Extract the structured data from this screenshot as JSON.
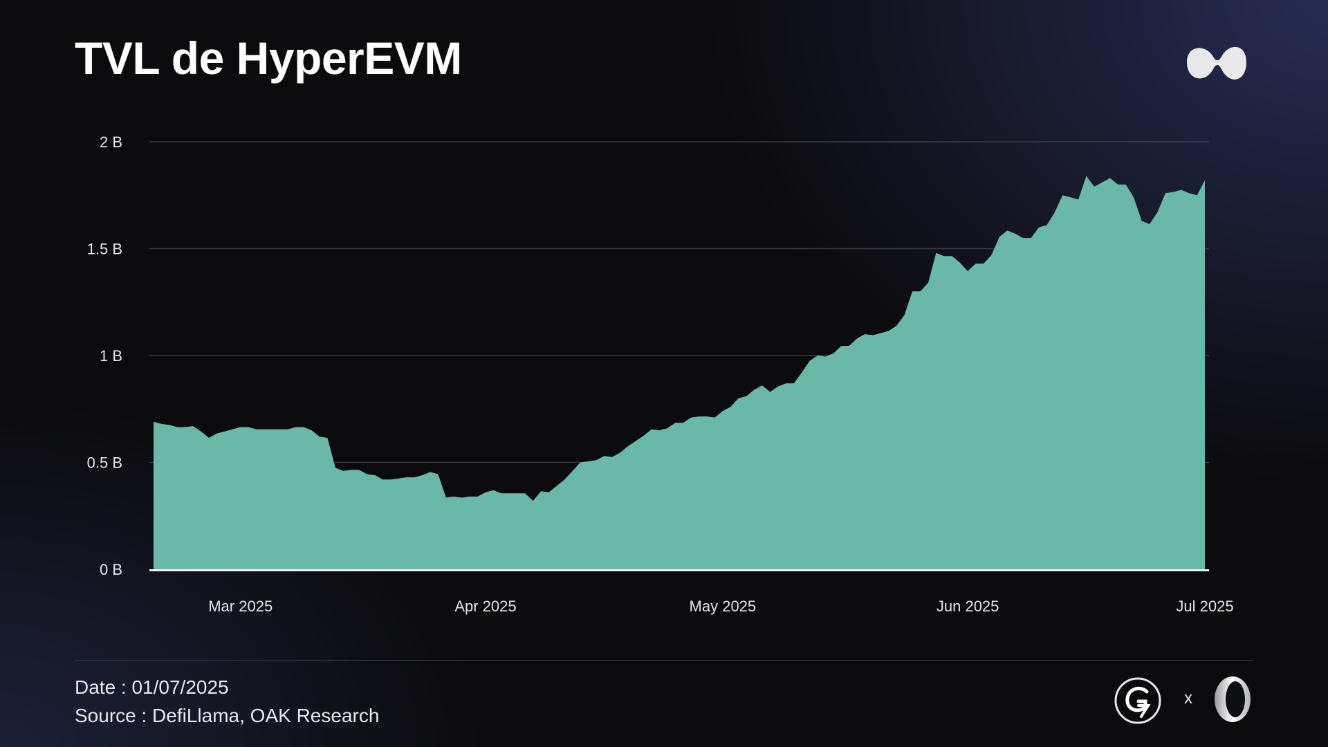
{
  "header": {
    "title": "TVL de HyperEVM",
    "logo_icon": "hyperliquid-logo-icon"
  },
  "footer": {
    "date": "Date : 01/07/2025",
    "source": "Source : DefiLlama, OAK Research",
    "partner_separator": "x",
    "partner_icons": [
      "g7-logo-icon",
      "oak-ring-logo-icon"
    ]
  },
  "colors": {
    "area_fill": "#69b8a8",
    "grid": "#3b3d46",
    "baseline": "#f2f2f2",
    "background": "#0b0b0d"
  },
  "chart_data": {
    "type": "area",
    "title": "TVL de HyperEVM",
    "xlabel": "",
    "ylabel": "",
    "y_unit": "B",
    "ylim": [
      0,
      2
    ],
    "y_ticks": [
      {
        "value": 0,
        "label": "0 B"
      },
      {
        "value": 0.5,
        "label": "0.5 B"
      },
      {
        "value": 1,
        "label": "1 B"
      },
      {
        "value": 1.5,
        "label": "1.5 B"
      },
      {
        "value": 2,
        "label": "2 B"
      }
    ],
    "xlim": [
      "2025-02-18",
      "2025-07-01"
    ],
    "x_ticks": [
      {
        "date": "2025-03-01",
        "label": "Mar 2025"
      },
      {
        "date": "2025-04-01",
        "label": "Apr 2025"
      },
      {
        "date": "2025-05-01",
        "label": "May 2025"
      },
      {
        "date": "2025-06-01",
        "label": "Jun 2025"
      },
      {
        "date": "2025-07-01",
        "label": "Jul 2025"
      }
    ],
    "grid": true,
    "legend": "none",
    "series": [
      {
        "points": [
          [
            "2025-02-18",
            0.69
          ],
          [
            "2025-02-19",
            0.68
          ],
          [
            "2025-02-20",
            0.675
          ],
          [
            "2025-02-21",
            0.665
          ],
          [
            "2025-02-22",
            0.665
          ],
          [
            "2025-02-23",
            0.67
          ],
          [
            "2025-02-24",
            0.645
          ],
          [
            "2025-02-25",
            0.615
          ],
          [
            "2025-02-26",
            0.635
          ],
          [
            "2025-02-27",
            0.645
          ],
          [
            "2025-02-28",
            0.655
          ],
          [
            "2025-03-01",
            0.665
          ],
          [
            "2025-03-02",
            0.665
          ],
          [
            "2025-03-03",
            0.655
          ],
          [
            "2025-03-04",
            0.655
          ],
          [
            "2025-03-05",
            0.655
          ],
          [
            "2025-03-06",
            0.655
          ],
          [
            "2025-03-07",
            0.655
          ],
          [
            "2025-03-08",
            0.665
          ],
          [
            "2025-03-09",
            0.665
          ],
          [
            "2025-03-10",
            0.65
          ],
          [
            "2025-03-11",
            0.62
          ],
          [
            "2025-03-12",
            0.615
          ],
          [
            "2025-03-13",
            0.475
          ],
          [
            "2025-03-14",
            0.46
          ],
          [
            "2025-03-15",
            0.465
          ],
          [
            "2025-03-16",
            0.465
          ],
          [
            "2025-03-17",
            0.445
          ],
          [
            "2025-03-18",
            0.44
          ],
          [
            "2025-03-19",
            0.42
          ],
          [
            "2025-03-20",
            0.42
          ],
          [
            "2025-03-21",
            0.425
          ],
          [
            "2025-03-22",
            0.43
          ],
          [
            "2025-03-23",
            0.43
          ],
          [
            "2025-03-24",
            0.44
          ],
          [
            "2025-03-25",
            0.455
          ],
          [
            "2025-03-26",
            0.445
          ],
          [
            "2025-03-27",
            0.335
          ],
          [
            "2025-03-28",
            0.34
          ],
          [
            "2025-03-29",
            0.335
          ],
          [
            "2025-03-30",
            0.34
          ],
          [
            "2025-03-31",
            0.34
          ],
          [
            "2025-04-01",
            0.36
          ],
          [
            "2025-04-02",
            0.37
          ],
          [
            "2025-04-03",
            0.355
          ],
          [
            "2025-04-04",
            0.355
          ],
          [
            "2025-04-05",
            0.355
          ],
          [
            "2025-04-06",
            0.355
          ],
          [
            "2025-04-07",
            0.32
          ],
          [
            "2025-04-08",
            0.365
          ],
          [
            "2025-04-09",
            0.36
          ],
          [
            "2025-04-10",
            0.39
          ],
          [
            "2025-04-11",
            0.42
          ],
          [
            "2025-04-12",
            0.46
          ],
          [
            "2025-04-13",
            0.5
          ],
          [
            "2025-04-14",
            0.505
          ],
          [
            "2025-04-15",
            0.51
          ],
          [
            "2025-04-16",
            0.53
          ],
          [
            "2025-04-17",
            0.525
          ],
          [
            "2025-04-18",
            0.545
          ],
          [
            "2025-04-19",
            0.575
          ],
          [
            "2025-04-20",
            0.6
          ],
          [
            "2025-04-21",
            0.625
          ],
          [
            "2025-04-22",
            0.655
          ],
          [
            "2025-04-23",
            0.65
          ],
          [
            "2025-04-24",
            0.66
          ],
          [
            "2025-04-25",
            0.685
          ],
          [
            "2025-04-26",
            0.685
          ],
          [
            "2025-04-27",
            0.71
          ],
          [
            "2025-04-28",
            0.715
          ],
          [
            "2025-04-29",
            0.715
          ],
          [
            "2025-04-30",
            0.71
          ],
          [
            "2025-05-01",
            0.74
          ],
          [
            "2025-05-02",
            0.76
          ],
          [
            "2025-05-03",
            0.8
          ],
          [
            "2025-05-04",
            0.81
          ],
          [
            "2025-05-05",
            0.84
          ],
          [
            "2025-05-06",
            0.86
          ],
          [
            "2025-05-07",
            0.83
          ],
          [
            "2025-05-08",
            0.855
          ],
          [
            "2025-05-09",
            0.87
          ],
          [
            "2025-05-10",
            0.87
          ],
          [
            "2025-05-11",
            0.92
          ],
          [
            "2025-05-12",
            0.975
          ],
          [
            "2025-05-13",
            1.0
          ],
          [
            "2025-05-14",
            0.995
          ],
          [
            "2025-05-15",
            1.01
          ],
          [
            "2025-05-16",
            1.045
          ],
          [
            "2025-05-17",
            1.045
          ],
          [
            "2025-05-18",
            1.08
          ],
          [
            "2025-05-19",
            1.1
          ],
          [
            "2025-05-20",
            1.095
          ],
          [
            "2025-05-21",
            1.105
          ],
          [
            "2025-05-22",
            1.115
          ],
          [
            "2025-05-23",
            1.14
          ],
          [
            "2025-05-24",
            1.19
          ],
          [
            "2025-05-25",
            1.3
          ],
          [
            "2025-05-26",
            1.3
          ],
          [
            "2025-05-27",
            1.34
          ],
          [
            "2025-05-28",
            1.48
          ],
          [
            "2025-05-29",
            1.465
          ],
          [
            "2025-05-30",
            1.465
          ],
          [
            "2025-05-31",
            1.435
          ],
          [
            "2025-06-01",
            1.395
          ],
          [
            "2025-06-02",
            1.43
          ],
          [
            "2025-06-03",
            1.43
          ],
          [
            "2025-06-04",
            1.47
          ],
          [
            "2025-06-05",
            1.555
          ],
          [
            "2025-06-06",
            1.585
          ],
          [
            "2025-06-07",
            1.57
          ],
          [
            "2025-06-08",
            1.55
          ],
          [
            "2025-06-09",
            1.55
          ],
          [
            "2025-06-10",
            1.6
          ],
          [
            "2025-06-11",
            1.61
          ],
          [
            "2025-06-12",
            1.67
          ],
          [
            "2025-06-13",
            1.75
          ],
          [
            "2025-06-14",
            1.74
          ],
          [
            "2025-06-15",
            1.73
          ],
          [
            "2025-06-16",
            1.84
          ],
          [
            "2025-06-17",
            1.79
          ],
          [
            "2025-06-18",
            1.81
          ],
          [
            "2025-06-19",
            1.83
          ],
          [
            "2025-06-20",
            1.8
          ],
          [
            "2025-06-21",
            1.8
          ],
          [
            "2025-06-22",
            1.74
          ],
          [
            "2025-06-23",
            1.63
          ],
          [
            "2025-06-24",
            1.615
          ],
          [
            "2025-06-25",
            1.67
          ],
          [
            "2025-06-26",
            1.76
          ],
          [
            "2025-06-27",
            1.765
          ],
          [
            "2025-06-28",
            1.775
          ],
          [
            "2025-06-29",
            1.76
          ],
          [
            "2025-06-30",
            1.75
          ],
          [
            "2025-07-01",
            1.82
          ]
        ]
      }
    ]
  }
}
